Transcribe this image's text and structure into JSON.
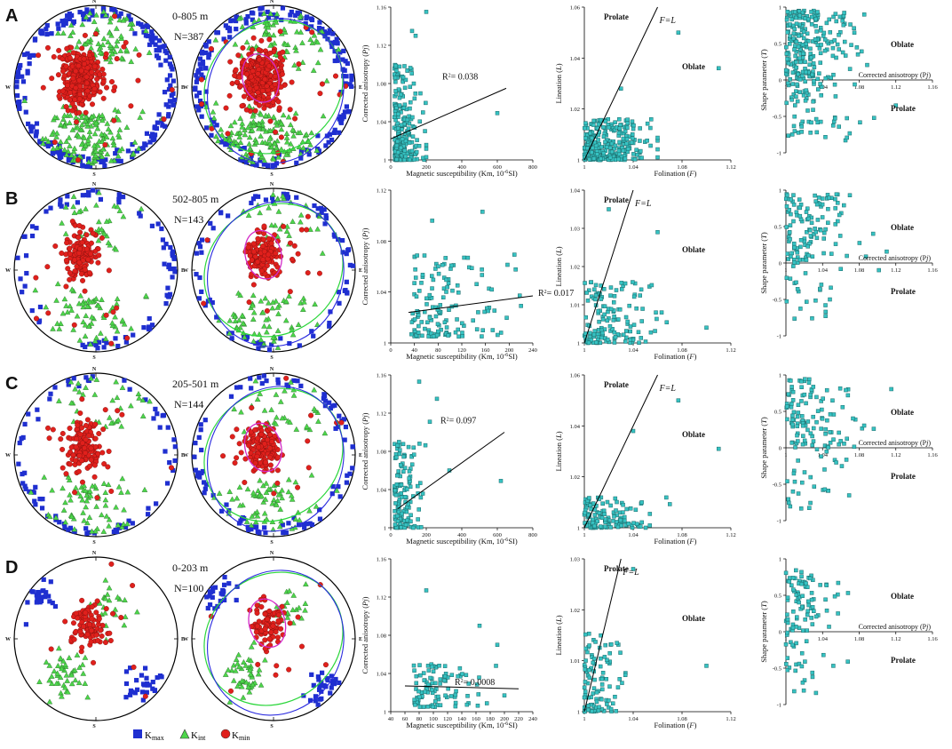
{
  "figure": {
    "legend": [
      {
        "key": "kmax",
        "label": "K",
        "sub": "max",
        "color": "#1f2fd0",
        "shape": "square"
      },
      {
        "key": "kint",
        "label": "K",
        "sub": "int",
        "color": "#4cd64a",
        "shape": "triangle"
      },
      {
        "key": "kmin",
        "label": "K",
        "sub": "min",
        "color": "#e0201c",
        "shape": "circle"
      }
    ],
    "colors": {
      "kmax": "#1f2fd0",
      "kint": "#4cd64a",
      "kmin": "#e0201c",
      "marker": "#36c2c2",
      "ellipse_min": "#d32ac8",
      "ellipse_gc": "#2ad63a",
      "great_circle": "#2a2adf"
    },
    "compass": {
      "n": "N",
      "s": "S",
      "w": "W",
      "e": "E"
    }
  },
  "chart_data": [
    {
      "panel": "A",
      "depth": "0-805 m",
      "n_label": "N=387",
      "type": "scatter",
      "subtype": "stereonet-pair",
      "kmin_center": {
        "trend": 300,
        "plunge": 72
      },
      "kmax_cluster": "girdle along primitive (W, E, S)",
      "kint_cluster": "SW-S region",
      "mean_kmin_confidence_ellipse": true,
      "pj_vs_km": {
        "type": "scatter",
        "xlabel": "Magnetic susceptibility (Km, 10",
        "xlabel_sup": "-6",
        "xlabel_tail": "SI)",
        "ylabel": "Corrected anisotropy (",
        "ylabel_it": "Pj",
        "ylabel_tail": ")",
        "xlim": [
          0,
          800
        ],
        "ylim": [
          1,
          1.16
        ],
        "xticks": [
          "0",
          "200",
          "400",
          "600",
          "800"
        ],
        "yticks": [
          "1",
          "1.04",
          "1.08",
          "1.12",
          "1.16"
        ],
        "r2": "R",
        "r2_sup": "2",
        "r2_val": "= 0.038",
        "trend": {
          "x": [
            0,
            650
          ],
          "y": [
            1.022,
            1.075
          ]
        },
        "cloud": {
          "x_range": [
            20,
            200
          ],
          "y_range": [
            1.0,
            1.1
          ],
          "n": 240
        },
        "outliers": [
          {
            "x": 600,
            "y": 1.049
          },
          {
            "x": 200,
            "y": 1.155
          },
          {
            "x": 120,
            "y": 1.135
          },
          {
            "x": 140,
            "y": 1.13
          }
        ]
      },
      "flinn": {
        "type": "scatter",
        "xlabel": "Folination (",
        "xlabel_it": "F",
        "xlabel_tail": ")",
        "ylabel": "Lineation (",
        "ylabel_it": "L",
        "ylabel_tail": ")",
        "xlim": [
          1,
          1.12
        ],
        "ylim": [
          1,
          1.06
        ],
        "xticks": [
          "1",
          "1.04",
          "1.08",
          "1.12"
        ],
        "yticks": [
          "1",
          "1.02",
          "1.04",
          "1.06"
        ],
        "line_label": "F=L",
        "prolate": "Prolate",
        "oblate": "Oblate",
        "cloud": {
          "x_range": [
            1.0,
            1.06
          ],
          "y_range": [
            1.0,
            1.016
          ],
          "n": 260
        },
        "outliers": [
          {
            "x": 1.077,
            "y": 1.05
          },
          {
            "x": 1.11,
            "y": 1.036
          },
          {
            "x": 1.03,
            "y": 1.028
          }
        ]
      },
      "shape": {
        "type": "scatter",
        "xlabel": "Corrected anisotropy (P",
        "xlabel_it": "j",
        "xlabel_tail": ")",
        "ylabel": "Shape parameter (",
        "ylabel_it": "T",
        "ylabel_tail": ")",
        "xlim": [
          1,
          1.16
        ],
        "ylim": [
          -1,
          1
        ],
        "xticks": [
          "1.04",
          "1.08",
          "1.12",
          "1.16"
        ],
        "yticks": [
          "1",
          "0.5",
          "0",
          "-0.5",
          "-1"
        ],
        "oblate": "Oblate",
        "prolate": "Prolate",
        "cloud": {
          "x_range": [
            1.0,
            1.12
          ],
          "y_range": [
            -0.85,
            0.95
          ],
          "n": 280
        }
      }
    },
    {
      "panel": "B",
      "depth": "502-805 m",
      "n_label": "N=143",
      "type": "scatter",
      "subtype": "stereonet-pair",
      "kmin_center": {
        "trend": 320,
        "plunge": 70
      },
      "pj_vs_km": {
        "type": "scatter",
        "xlabel": "Magnetic susceptibility (Km, 10",
        "xlabel_sup": "-6",
        "xlabel_tail": "SI)",
        "ylabel": "Corrected anisotropy (",
        "ylabel_it": "Pj",
        "ylabel_tail": ")",
        "xlim": [
          0,
          240
        ],
        "ylim": [
          1,
          1.12
        ],
        "xticks": [
          "0",
          "40",
          "80",
          "120",
          "160",
          "200",
          "240"
        ],
        "yticks": [
          "1",
          "1.04",
          "1.08",
          "1.12"
        ],
        "r2": "R",
        "r2_sup": "2",
        "r2_val": "= 0.017",
        "trend": {
          "x": [
            30,
            240
          ],
          "y": [
            1.024,
            1.037
          ]
        },
        "cloud": {
          "x_range": [
            35,
            220
          ],
          "y_range": [
            1.005,
            1.07
          ],
          "n": 140
        },
        "outliers": [
          {
            "x": 70,
            "y": 1.096
          },
          {
            "x": 155,
            "y": 1.103
          }
        ]
      },
      "flinn": {
        "type": "scatter",
        "xlabel": "Folination (",
        "xlabel_it": "F",
        "xlabel_tail": ")",
        "ylabel": "Lineation (",
        "ylabel_it": "L",
        "ylabel_tail": ")",
        "xlim": [
          1,
          1.12
        ],
        "ylim": [
          1,
          1.04
        ],
        "xticks": [
          "1",
          "1.04",
          "1.08",
          "1.12"
        ],
        "yticks": [
          "1",
          "1.01",
          "1.02",
          "1.03",
          "1.04"
        ],
        "line_label": "F=L",
        "prolate": "Prolate",
        "oblate": "Oblate",
        "cloud": {
          "x_range": [
            1.0,
            1.07
          ],
          "y_range": [
            1.0,
            1.016
          ],
          "n": 140
        },
        "outliers": [
          {
            "x": 1.06,
            "y": 1.029
          },
          {
            "x": 1.02,
            "y": 1.035
          },
          {
            "x": 1.1,
            "y": 1.004
          }
        ]
      },
      "shape": {
        "type": "scatter",
        "xlabel": "Corrected anisotropy (P",
        "xlabel_it": "j",
        "xlabel_tail": ")",
        "ylabel": "Shape parameter (",
        "ylabel_it": "T",
        "ylabel_tail": ")",
        "xlim": [
          1,
          1.16
        ],
        "ylim": [
          -1,
          1
        ],
        "xticks": [
          "1.04",
          "1.08",
          "1.12",
          "1.16"
        ],
        "yticks": [
          "1",
          "0.5",
          "0",
          "-0.5",
          "-1"
        ],
        "oblate": "Oblate",
        "prolate": "Prolate",
        "cloud": {
          "x_range": [
            1.0,
            1.12
          ],
          "y_range": [
            -0.8,
            0.95
          ],
          "n": 140
        }
      }
    },
    {
      "panel": "C",
      "depth": "205-501 m",
      "n_label": "N=144",
      "type": "scatter",
      "subtype": "stereonet-pair",
      "kmin_center": {
        "trend": 300,
        "plunge": 75
      },
      "pj_vs_km": {
        "type": "scatter",
        "xlabel": "Magnetic susceptibility (Km, 10",
        "xlabel_sup": "-6",
        "xlabel_tail": "SI)",
        "ylabel": "Corrected anisotropy (",
        "ylabel_it": "Pj",
        "ylabel_tail": ")",
        "xlim": [
          0,
          800
        ],
        "ylim": [
          1,
          1.16
        ],
        "xticks": [
          "0",
          "200",
          "400",
          "600",
          "800"
        ],
        "yticks": [
          "1",
          "1.04",
          "1.08",
          "1.12",
          "1.16"
        ],
        "r2": "R",
        "r2_sup": "2",
        "r2_val": "= 0.097",
        "trend": {
          "x": [
            40,
            640
          ],
          "y": [
            1.02,
            1.1
          ]
        },
        "cloud": {
          "x_range": [
            20,
            200
          ],
          "y_range": [
            1.0,
            1.09
          ],
          "n": 130
        },
        "outliers": [
          {
            "x": 620,
            "y": 1.049
          },
          {
            "x": 260,
            "y": 1.135
          },
          {
            "x": 220,
            "y": 1.111
          },
          {
            "x": 160,
            "y": 1.153
          },
          {
            "x": 330,
            "y": 1.06
          }
        ]
      },
      "flinn": {
        "type": "scatter",
        "xlabel": "Folination (",
        "xlabel_it": "F",
        "xlabel_tail": ")",
        "ylabel": "Lineation (",
        "ylabel_it": "L",
        "ylabel_tail": ")",
        "xlim": [
          1,
          1.12
        ],
        "ylim": [
          1,
          1.06
        ],
        "xticks": [
          "1",
          "1.04",
          "1.08",
          "1.12"
        ],
        "yticks": [
          "1",
          "1.02",
          "1.04",
          "1.06"
        ],
        "line_label": "F=L",
        "prolate": "Prolate",
        "oblate": "Oblate",
        "cloud": {
          "x_range": [
            1.0,
            1.07
          ],
          "y_range": [
            1.0,
            1.012
          ],
          "n": 130
        },
        "outliers": [
          {
            "x": 1.077,
            "y": 1.05
          },
          {
            "x": 1.11,
            "y": 1.031
          },
          {
            "x": 1.04,
            "y": 1.038
          }
        ]
      },
      "shape": {
        "type": "scatter",
        "xlabel": "Corrected anisotropy (P",
        "xlabel_it": "j",
        "xlabel_tail": ")",
        "ylabel": "Shape parameter (",
        "ylabel_it": "T",
        "ylabel_tail": ")",
        "xlim": [
          1,
          1.16
        ],
        "ylim": [
          -1,
          1
        ],
        "xticks": [
          "1.04",
          "1.08",
          "1.12",
          "1.16"
        ],
        "yticks": [
          "1",
          "0.5",
          "0",
          "-0.5",
          "-1"
        ],
        "oblate": "Oblate",
        "prolate": "Prolate",
        "cloud": {
          "x_range": [
            1.0,
            1.12
          ],
          "y_range": [
            -0.85,
            0.95
          ],
          "n": 140
        }
      }
    },
    {
      "panel": "D",
      "depth": "0-203 m",
      "n_label": "N=100",
      "type": "scatter",
      "subtype": "stereonet-pair",
      "kmin_center": {
        "trend": 330,
        "plunge": 72
      },
      "pj_vs_km": {
        "type": "scatter",
        "xlabel": "Magnetic susceptibility (Km, 10",
        "xlabel_sup": "-6",
        "xlabel_tail": "SI)",
        "ylabel": "Corrected anisotropy (",
        "ylabel_it": "Pj",
        "ylabel_tail": ")",
        "xlim": [
          40,
          240
        ],
        "ylim": [
          1,
          1.16
        ],
        "xticks": [
          "40",
          "60",
          "80",
          "100",
          "120",
          "140",
          "160",
          "180",
          "200",
          "220",
          "240"
        ],
        "yticks": [
          "1",
          "1.04",
          "1.08",
          "1.12",
          "1.16"
        ],
        "r2": "R",
        "r2_sup": "2",
        "r2_val": "= 0.0008",
        "trend": {
          "x": [
            60,
            220
          ],
          "y": [
            1.027,
            1.024
          ]
        },
        "cloud": {
          "x_range": [
            70,
            200
          ],
          "y_range": [
            1.005,
            1.05
          ],
          "n": 100
        },
        "outliers": [
          {
            "x": 90,
            "y": 1.127
          },
          {
            "x": 165,
            "y": 1.09
          },
          {
            "x": 190,
            "y": 1.07
          }
        ]
      },
      "flinn": {
        "type": "scatter",
        "xlabel": "Folination (",
        "xlabel_it": "F",
        "xlabel_tail": ")",
        "ylabel": "Lineation (",
        "ylabel_it": "L",
        "ylabel_tail": ")",
        "xlim": [
          1,
          1.12
        ],
        "ylim": [
          1,
          1.03
        ],
        "xticks": [
          "1",
          "1.04",
          "1.08",
          "1.12"
        ],
        "yticks": [
          "1",
          "1.01",
          "1.02",
          "1.03"
        ],
        "line_label": "F=L",
        "prolate": "Prolate",
        "oblate": "Oblate",
        "cloud": {
          "x_range": [
            1.0,
            1.035
          ],
          "y_range": [
            1.0,
            1.016
          ],
          "n": 100
        },
        "outliers": [
          {
            "x": 1.04,
            "y": 1.028
          },
          {
            "x": 1.1,
            "y": 1.009
          }
        ]
      },
      "shape": {
        "type": "scatter",
        "xlabel": "Corrected anisotropy (P",
        "xlabel_it": "j",
        "xlabel_tail": ")",
        "ylabel": "Shape parameter (",
        "ylabel_it": "T",
        "ylabel_tail": ")",
        "xlim": [
          1,
          1.16
        ],
        "ylim": [
          -1,
          1
        ],
        "xticks": [
          "1.04",
          "1.08",
          "1.12",
          "1.16"
        ],
        "yticks": [
          "1",
          "0.5",
          "0",
          "-0.5",
          "-1"
        ],
        "oblate": "Oblate",
        "prolate": "Prolate",
        "cloud": {
          "x_range": [
            1.0,
            1.08
          ],
          "y_range": [
            -0.85,
            0.85
          ],
          "n": 110
        }
      }
    }
  ]
}
